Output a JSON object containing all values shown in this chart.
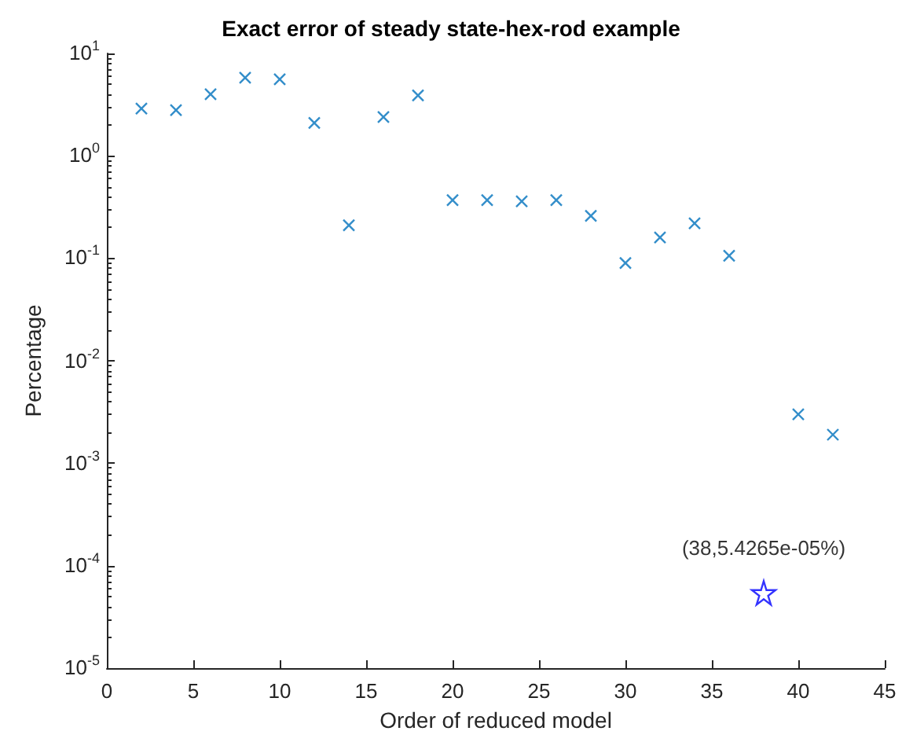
{
  "chart_data": {
    "type": "scatter",
    "title": "Exact error of steady state-hex-rod example",
    "xlabel": "Order of reduced model",
    "ylabel": "Percentage",
    "log": "y",
    "grid": false,
    "xlim": [
      0,
      45
    ],
    "xticks": [
      0,
      5,
      10,
      15,
      20,
      25,
      30,
      35,
      40,
      45
    ],
    "ylim": [
      1e-05,
      10
    ],
    "yticks": [
      {
        "value": 1e-05,
        "label": "10$^{-5}$"
      },
      {
        "value": 0.0001,
        "label": "10$^{-4}$"
      },
      {
        "value": 0.001,
        "label": "10$^{-3}$"
      },
      {
        "value": 0.01,
        "label": "10$^{-2}$"
      },
      {
        "value": 0.1,
        "label": "10$^{-1}$"
      },
      {
        "value": 1,
        "label": "10$^{0}$"
      },
      {
        "value": 10,
        "label": "10$^{1}$"
      }
    ],
    "series": [
      {
        "color": "#0072bd",
        "marker": "cross",
        "x": [
          2,
          4,
          6,
          8,
          10,
          12,
          14,
          16,
          18,
          20,
          22,
          24,
          26,
          28,
          30,
          32,
          34,
          36,
          40,
          42
        ],
        "values": [
          2.9,
          2.8,
          4.0,
          5.8,
          5.6,
          2.1,
          0.21,
          2.4,
          3.9,
          0.37,
          0.37,
          0.36,
          0.37,
          0.26,
          0.09,
          0.16,
          0.22,
          0.106,
          0.003,
          0.0019
        ]
      },
      {
        "color": "#0000ff",
        "marker": "star",
        "x": [
          38
        ],
        "values": [
          5.4265e-05
        ]
      }
    ],
    "annotations": [
      {
        "text": "(38,5.4265e-05%)",
        "x": 38,
        "y": 5.4265e-05
      }
    ]
  }
}
